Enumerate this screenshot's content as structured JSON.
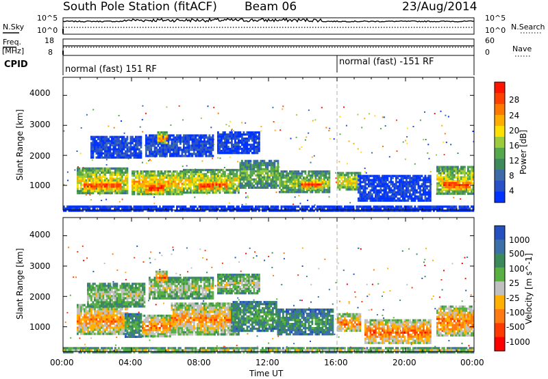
{
  "header": {
    "station": "South Pole Station (fitACF)",
    "beam": "Beam 06",
    "date": "23/Aug/2014"
  },
  "top_panels": {
    "nsky_label": "N.Sky",
    "nsearch_label": "N.Search",
    "nsky_ticks": [
      "10^5",
      "10^0"
    ],
    "nsearch_ticks": [
      "10^5",
      "10^0"
    ],
    "freq_label_1": "Freq.",
    "freq_label_2": "[MHz]",
    "freq_ticks": [
      "18",
      "8"
    ],
    "nave_label": "Nave",
    "nave_ticks": [
      "60",
      "0"
    ],
    "cpid_label": "CPID",
    "cpid_segments": [
      {
        "text": "normal (fast) 151 RF",
        "start_hour": 0
      },
      {
        "text": "normal (fast) -151 RF",
        "start_hour": 16
      }
    ]
  },
  "chart_data": [
    {
      "type": "heatmap",
      "title": "",
      "xlabel": "Time UT",
      "ylabel": "Slant Range [km]",
      "x_ticks": [
        "00:00",
        "04:00",
        "08:00",
        "12:00",
        "16:00",
        "20:00",
        "00:00"
      ],
      "y_ticks": [
        1000,
        2000,
        3000,
        4000
      ],
      "xlim_hours": [
        0,
        24
      ],
      "ylim_km": [
        180,
        4600
      ],
      "colorbar": {
        "label": "Power [dB]",
        "ticks": [
          4,
          8,
          12,
          16,
          20,
          24,
          28
        ],
        "range": [
          0,
          30
        ],
        "colors": [
          "#0033ff",
          "#2850c8",
          "#3d6aa8",
          "#3f8a5a",
          "#56a84c",
          "#9ccb3c",
          "#ffe000",
          "#ffae00",
          "#ff7800",
          "#ff4000",
          "#ff1400"
        ]
      },
      "regions": [
        {
          "t0": 0.8,
          "t1": 3.8,
          "r0": 750,
          "r1": 1600,
          "level": 0.62
        },
        {
          "t0": 1.2,
          "t1": 3.4,
          "r0": 850,
          "r1": 1200,
          "level": 0.92
        },
        {
          "t0": 4.0,
          "t1": 7.0,
          "r0": 700,
          "r1": 1500,
          "level": 0.7
        },
        {
          "t0": 4.8,
          "t1": 5.9,
          "r0": 750,
          "r1": 1150,
          "level": 0.97
        },
        {
          "t0": 7.0,
          "t1": 10.3,
          "r0": 750,
          "r1": 1550,
          "level": 0.62
        },
        {
          "t0": 7.9,
          "t1": 9.6,
          "r0": 850,
          "r1": 1200,
          "level": 0.92
        },
        {
          "t0": 10.3,
          "t1": 12.6,
          "r0": 900,
          "r1": 1850,
          "level": 0.45
        },
        {
          "t0": 12.6,
          "t1": 15.6,
          "r0": 750,
          "r1": 1500,
          "level": 0.5
        },
        {
          "t0": 13.9,
          "t1": 15.2,
          "r0": 900,
          "r1": 1200,
          "level": 0.9
        },
        {
          "t0": 16.0,
          "t1": 17.4,
          "r0": 850,
          "r1": 1450,
          "level": 0.6
        },
        {
          "t0": 17.2,
          "t1": 21.5,
          "r0": 500,
          "r1": 1350,
          "level": 0.1
        },
        {
          "t0": 21.8,
          "t1": 24.0,
          "r0": 700,
          "r1": 1650,
          "level": 0.6
        },
        {
          "t0": 22.2,
          "t1": 23.8,
          "r0": 850,
          "r1": 1250,
          "level": 0.92
        },
        {
          "t0": 1.6,
          "t1": 4.6,
          "r0": 1900,
          "r1": 2650,
          "level": 0.12
        },
        {
          "t0": 4.8,
          "t1": 8.8,
          "r0": 1950,
          "r1": 2700,
          "level": 0.15
        },
        {
          "t0": 5.5,
          "t1": 6.1,
          "r0": 2400,
          "r1": 2800,
          "level": 0.75
        },
        {
          "t0": 9.0,
          "t1": 11.5,
          "r0": 2100,
          "r1": 2800,
          "level": 0.1
        },
        {
          "t0": 0.0,
          "t1": 24.0,
          "r0": 190,
          "r1": 330,
          "level": 0.05
        }
      ]
    },
    {
      "type": "heatmap",
      "title": "",
      "xlabel": "Time UT",
      "ylabel": "Slant Range [km]",
      "x_ticks": [
        "00:00",
        "04:00",
        "08:00",
        "12:00",
        "16:00",
        "20:00",
        "00:00"
      ],
      "y_ticks": [
        1000,
        2000,
        3000,
        4000
      ],
      "xlim_hours": [
        0,
        24
      ],
      "ylim_km": [
        180,
        4600
      ],
      "colorbar": {
        "label": "Velocity [m s^-1]",
        "ticks": [
          "1000",
          "500",
          "100",
          "25",
          "-25",
          "-100",
          "-500",
          "-1000"
        ],
        "colors": [
          "#2450c0",
          "#3c70a8",
          "#3a8a5a",
          "#58b040",
          "#c0c0c0",
          "#ffb000",
          "#ff7a10",
          "#ff3a00",
          "#ff0000"
        ]
      },
      "regions": [
        {
          "t0": 0.8,
          "t1": 3.8,
          "r0": 750,
          "r1": 1750,
          "level": 0.72
        },
        {
          "t0": 3.6,
          "t1": 4.6,
          "r0": 700,
          "r1": 1450,
          "level": 0.35
        },
        {
          "t0": 4.6,
          "t1": 6.3,
          "r0": 700,
          "r1": 1400,
          "level": 0.76
        },
        {
          "t0": 6.3,
          "t1": 10.3,
          "r0": 750,
          "r1": 1800,
          "level": 0.7
        },
        {
          "t0": 9.8,
          "t1": 12.5,
          "r0": 900,
          "r1": 1850,
          "level": 0.35
        },
        {
          "t0": 12.5,
          "t1": 15.8,
          "r0": 750,
          "r1": 1600,
          "level": 0.3
        },
        {
          "t0": 16.0,
          "t1": 17.4,
          "r0": 850,
          "r1": 1450,
          "level": 0.72
        },
        {
          "t0": 17.6,
          "t1": 21.5,
          "r0": 450,
          "r1": 1250,
          "level": 0.78
        },
        {
          "t0": 21.8,
          "t1": 24.0,
          "r0": 700,
          "r1": 1700,
          "level": 0.75
        },
        {
          "t0": 1.4,
          "t1": 4.8,
          "r0": 1700,
          "r1": 2450,
          "level": 0.5
        },
        {
          "t0": 5.0,
          "t1": 8.8,
          "r0": 1950,
          "r1": 2650,
          "level": 0.5
        },
        {
          "t0": 5.4,
          "t1": 6.1,
          "r0": 2450,
          "r1": 2850,
          "level": 0.78
        },
        {
          "t0": 9.0,
          "t1": 11.5,
          "r0": 2100,
          "r1": 2750,
          "level": 0.5
        },
        {
          "t0": 0.0,
          "t1": 24.0,
          "r0": 190,
          "r1": 330,
          "level": 0.5
        }
      ]
    }
  ]
}
